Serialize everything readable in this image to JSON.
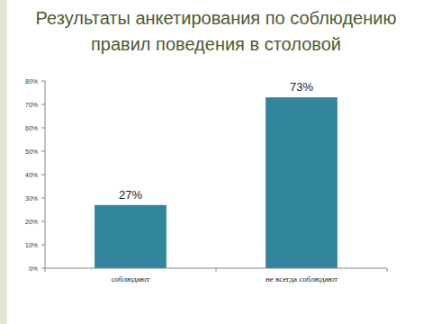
{
  "chart_data": {
    "type": "bar",
    "title": "Результаты анкетирования по соблюдению правил поведения в столовой",
    "categories": [
      "соблюдают",
      "не всегда соблюдают"
    ],
    "values": [
      27,
      73
    ],
    "value_labels": [
      "27%",
      "73%"
    ],
    "color": "#31859c",
    "ylim": [
      0,
      80
    ],
    "yticks": [
      {
        "value": 0,
        "label": "0%"
      },
      {
        "value": 10,
        "label": "10%"
      },
      {
        "value": 20,
        "label": "20%"
      },
      {
        "value": 30,
        "label": "30%"
      },
      {
        "value": 40,
        "label": "40%"
      },
      {
        "value": 50,
        "label": "50%"
      },
      {
        "value": 60,
        "label": "60%"
      },
      {
        "value": 70,
        "label": "70%"
      },
      {
        "value": 80,
        "label": "80%"
      }
    ],
    "grid": false,
    "data_labels": true
  }
}
